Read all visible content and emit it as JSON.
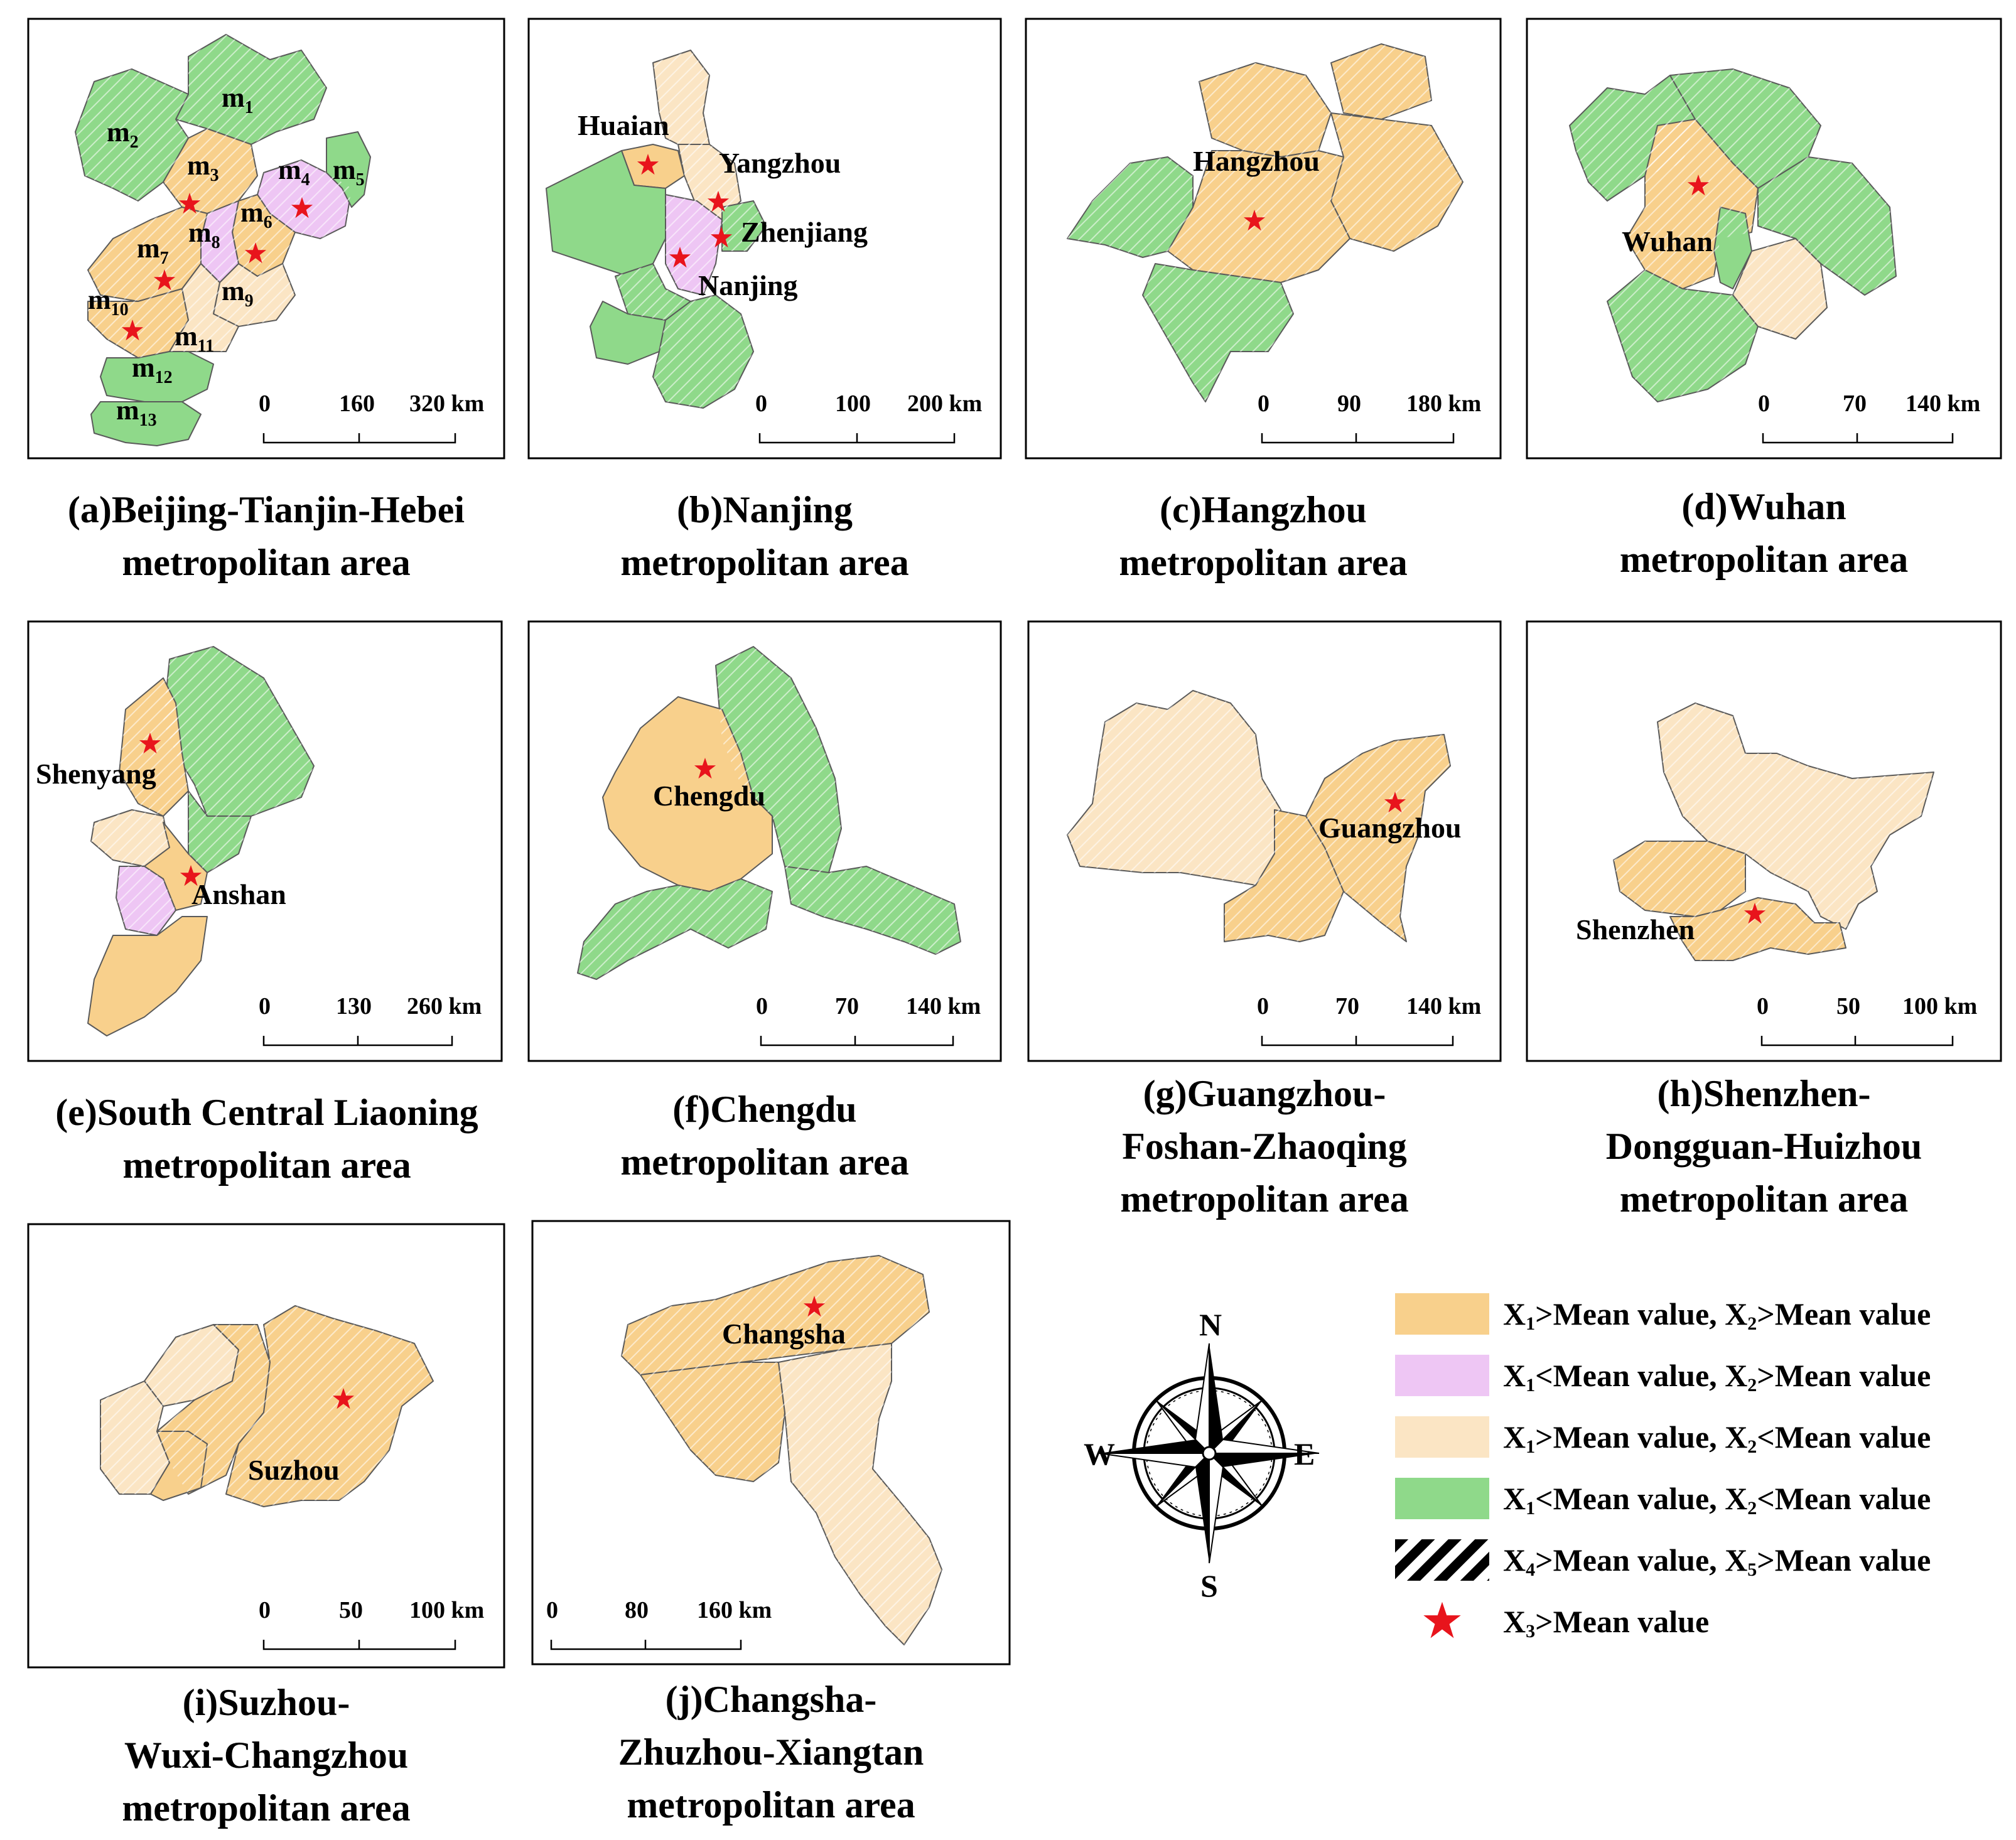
{
  "colors": {
    "deep_orange": "#f8d08c",
    "purple": "#eec6f4",
    "light_orange": "#fbe5c4",
    "green": "#8fd98a",
    "star": "#e8141c",
    "hatch": "#ffffff"
  },
  "panels": [
    {
      "id": "a",
      "caption_line1": "(a)Beijing-Tianjin-Hebei",
      "caption_line2": "metropolitan area",
      "caption_line3": "",
      "scale": [
        "0",
        "160",
        "320 km"
      ],
      "cities": [
        "m1",
        "m2",
        "m3",
        "m4",
        "m5",
        "m6",
        "m7",
        "m8",
        "m9",
        "m10",
        "m11",
        "m12",
        "m13"
      ]
    },
    {
      "id": "b",
      "caption_line1": "(b)Nanjing",
      "caption_line2": "metropolitan area",
      "caption_line3": "",
      "scale": [
        "0",
        "100",
        "200 km"
      ],
      "cities": [
        "Huaian",
        "Yangzhou",
        "Zhenjiang",
        "Nanjing"
      ]
    },
    {
      "id": "c",
      "caption_line1": "(c)Hangzhou",
      "caption_line2": "metropolitan area",
      "caption_line3": "",
      "scale": [
        "0",
        "90",
        "180 km"
      ],
      "cities": [
        "Hangzhou"
      ]
    },
    {
      "id": "d",
      "caption_line1": "(d)Wuhan",
      "caption_line2": "metropolitan area",
      "caption_line3": "",
      "scale": [
        "0",
        "70",
        "140 km"
      ],
      "cities": [
        "Wuhan"
      ]
    },
    {
      "id": "e",
      "caption_line1": "(e)South Central Liaoning",
      "caption_line2": "metropolitan area",
      "caption_line3": "",
      "scale": [
        "0",
        "130",
        "260 km"
      ],
      "cities": [
        "Shenyang",
        "Anshan"
      ]
    },
    {
      "id": "f",
      "caption_line1": "(f)Chengdu",
      "caption_line2": "metropolitan area",
      "caption_line3": "",
      "scale": [
        "0",
        "70",
        "140 km"
      ],
      "cities": [
        "Chengdu"
      ]
    },
    {
      "id": "g",
      "caption_line1": "(g)Guangzhou-",
      "caption_line2": "Foshan-Zhaoqing",
      "caption_line3": "metropolitan area",
      "scale": [
        "0",
        "70",
        "140 km"
      ],
      "cities": [
        "Guangzhou"
      ]
    },
    {
      "id": "h",
      "caption_line1": "(h)Shenzhen-",
      "caption_line2": "Dongguan-Huizhou",
      "caption_line3": "metropolitan area",
      "scale": [
        "0",
        "50",
        "100 km"
      ],
      "cities": [
        "Shenzhen"
      ]
    },
    {
      "id": "i",
      "caption_line1": "(i)Suzhou-",
      "caption_line2": "Wuxi-Changzhou",
      "caption_line3": "metropolitan area",
      "scale": [
        "0",
        "50",
        "100 km"
      ],
      "cities": [
        "Suzhou"
      ]
    },
    {
      "id": "j",
      "caption_line1": "(j)Changsha-",
      "caption_line2": "Zhuzhou-Xiangtan",
      "caption_line3": "metropolitan area",
      "scale": [
        "0",
        "80",
        "160 km"
      ],
      "cities": [
        "Changsha"
      ]
    }
  ],
  "compass": {
    "n": "N",
    "s": "S",
    "e": "E",
    "w": "W"
  },
  "legend": [
    {
      "swatch": "deep_orange",
      "x1": "X",
      "x1_sub": "1",
      "op1": ">Mean value, ",
      "x2": "X",
      "x2_sub": "2",
      "op2": ">Mean value"
    },
    {
      "swatch": "purple",
      "x1": "X",
      "x1_sub": "1",
      "op1": "<Mean value, ",
      "x2": "X",
      "x2_sub": "2",
      "op2": ">Mean value"
    },
    {
      "swatch": "light_orange",
      "x1": "X",
      "x1_sub": "1",
      "op1": ">Mean value, ",
      "x2": "X",
      "x2_sub": "2",
      "op2": "<Mean value"
    },
    {
      "swatch": "green",
      "x1": "X",
      "x1_sub": "1",
      "op1": "<Mean value, ",
      "x2": "X",
      "x2_sub": "2",
      "op2": "<Mean value"
    },
    {
      "swatch": "hatch",
      "x1": "X",
      "x1_sub": "4",
      "op1": ">Mean value, ",
      "x2": "X",
      "x2_sub": "5",
      "op2": ">Mean value"
    },
    {
      "swatch": "star",
      "x1": "X",
      "x1_sub": "3",
      "op1": ">Mean value",
      "x2": "",
      "x2_sub": "",
      "op2": ""
    }
  ]
}
